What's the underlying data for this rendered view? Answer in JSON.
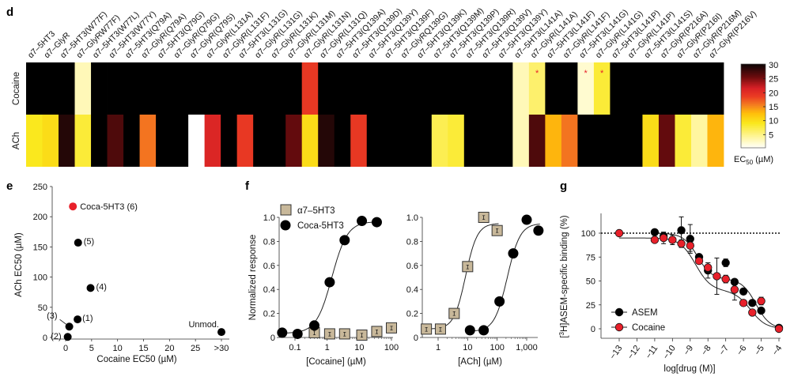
{
  "panels": {
    "d": "d",
    "e": "e",
    "f": "f",
    "g": "g"
  },
  "chart_data": [
    {
      "type": "heatmap",
      "panel": "d",
      "title": "",
      "rows": [
        "Cocaine",
        "ACh"
      ],
      "columns": [
        "α7–5HT3",
        "α7–GlyR",
        "α7–5HT3(W77F)",
        "α7–GlyRW77F)",
        "α7–5HT3(W77L)",
        "α7–5HT3(W77Y)",
        "α7–5HT3(Q79A)",
        "α7–GlyR(Q79A)",
        "α7–5HT3(Q79G)",
        "α7–GlyR(Q79G)",
        "α7–GlyR(Q79S)",
        "α7–GlyR(L131A)",
        "α7–GlyR(L131F)",
        "α7–5HT3(L131G)",
        "α7–GlyR(L131G)",
        "α7–GlyR(L131K)",
        "α7–GlyR(L131M)",
        "α7–GlyR(L131N)",
        "α7–GlyR(L131Q)",
        "α7–5HT3(Q139A)",
        "α7–5HT3(Q139D)",
        "α7–5HT3(Q139Y)",
        "α7–5HT3(Q139F)",
        "α7–GlyRQ139G)",
        "α7–5HT3(Q139K)",
        "α7–5HT3(Q139M)",
        "α7–5HT3(Q139P)",
        "α7–5HT3(Q139R)",
        "α7–5HT3(Q139V)",
        "α7–5HT3(Q139Y)",
        "α7–5HT3(L141A)",
        "α7–GlyR(L141A)",
        "α7–5HT3(L141F)",
        "α7–GlyR(L141F)",
        "α7–5HT3(L141G)",
        "α7–GlyR(L141G)",
        "α7–5HT3(L141P)",
        "α7–GlyR(L141P)",
        "α7–5HT3(L141S)",
        "α7–GlyR(P216A)",
        "α7–GlyR(P216I)",
        "α7–GlyR(P216M)",
        "α7–GlyR(P216V)"
      ],
      "values_note": "EC50 (µM); null = no response (black, >30)",
      "values": [
        [
          null,
          null,
          null,
          3,
          null,
          null,
          null,
          null,
          null,
          null,
          null,
          null,
          null,
          null,
          null,
          null,
          null,
          19,
          null,
          null,
          null,
          null,
          null,
          null,
          null,
          null,
          null,
          null,
          null,
          null,
          3,
          6,
          null,
          null,
          2,
          8,
          null,
          null,
          null,
          null,
          null,
          null,
          null
        ],
        [
          9,
          10,
          29,
          8,
          null,
          27,
          null,
          16,
          null,
          null,
          0,
          21,
          null,
          19,
          null,
          null,
          26,
          10,
          29,
          null,
          19,
          null,
          null,
          null,
          null,
          7,
          8,
          null,
          null,
          null,
          3,
          27,
          13,
          16,
          null,
          null,
          null,
          null,
          10,
          26,
          8,
          4,
          13
        ]
      ],
      "significance_marks": [
        {
          "row": "Cocaine",
          "column": 31,
          "mark": "*"
        },
        {
          "row": "Cocaine",
          "column": 34,
          "mark": "*"
        },
        {
          "row": "Cocaine",
          "column": 35,
          "mark": "*"
        }
      ],
      "colorbar": {
        "label": "EC50 (µM)",
        "ticks": [
          5,
          10,
          15,
          20,
          25,
          30
        ],
        "range": [
          0,
          30
        ],
        "colormap": "hot (white→yellow→red→black)"
      }
    },
    {
      "type": "scatter",
      "panel": "e",
      "xlabel": "Cocaine EC50 (µM)",
      "ylabel": "ACh EC50 (µM)",
      "xlim": [
        -3,
        31
      ],
      "ylim": [
        0,
        250
      ],
      "xticks": [
        "0",
        "5",
        "10",
        "15",
        "20",
        "25",
        ">30"
      ],
      "yticks": [
        "0",
        "50",
        "100",
        "150",
        "200",
        "250"
      ],
      "points": [
        {
          "label": "(1)",
          "x": 2.3,
          "y": 30,
          "color": "#000000"
        },
        {
          "label": "(2)",
          "x": 0.4,
          "y": 1,
          "color": "#000000"
        },
        {
          "label": "(3)",
          "x": 0.7,
          "y": 18,
          "color": "#000000"
        },
        {
          "label": "(4)",
          "x": 4.8,
          "y": 82,
          "color": "#000000"
        },
        {
          "label": "(5)",
          "x": 2.4,
          "y": 157,
          "color": "#000000"
        },
        {
          "label": "Coca-5HT3 (6)",
          "x": 1.4,
          "y": 217,
          "color": "#e8202a"
        },
        {
          "label": "Unmod.",
          "x": 30,
          "y": 9,
          "color": "#000000"
        }
      ]
    },
    {
      "type": "scatter",
      "panel": "f-left",
      "xlabel": "[Cocaine] (µM)",
      "ylabel": "Normalized response",
      "xscale": "log",
      "xlim": [
        0.03,
        150
      ],
      "ylim": [
        0,
        1.0
      ],
      "xticks": [
        "0.1",
        "1",
        "10",
        "100"
      ],
      "yticks": [
        "0",
        "0.2",
        "0.4",
        "0.6",
        "0.8",
        "1.0"
      ],
      "legend": [
        "α7–5HT3",
        "Coca-5HT3"
      ],
      "series": [
        {
          "name": "α7–5HT3",
          "marker": "square",
          "color": "#c8b89a",
          "x": [
            0.4,
            1.2,
            3.5,
            12,
            35,
            100
          ],
          "y": [
            0.04,
            0.03,
            0.03,
            0.02,
            0.05,
            0.08
          ]
        },
        {
          "name": "Coca-5HT3",
          "marker": "circle",
          "color": "#000000",
          "x": [
            0.04,
            0.12,
            0.4,
            1.2,
            3.5,
            12,
            35
          ],
          "y": [
            0.04,
            0.03,
            0.1,
            0.46,
            0.81,
            0.97,
            0.96
          ],
          "fit": {
            "ec50": 1.4,
            "hill": 1.8,
            "bottom": 0.035,
            "top": 0.965
          }
        }
      ]
    },
    {
      "type": "scatter",
      "panel": "f-right",
      "xlabel": "[ACh] (µM)",
      "ylabel": "",
      "xscale": "log",
      "xlim": [
        0.3,
        3500
      ],
      "ylim": [
        0,
        1.0
      ],
      "xticks": [
        "1",
        "10",
        "100",
        "1,000"
      ],
      "yticks": [
        "0",
        "0.2",
        "0.4",
        "0.6",
        "0.8",
        "1.0"
      ],
      "series": [
        {
          "name": "α7–5HT3",
          "marker": "square",
          "color": "#c8b89a",
          "x": [
            0.4,
            1.2,
            3.5,
            10,
            35,
            100
          ],
          "y": [
            0.07,
            0.07,
            0.2,
            0.59,
            1.0,
            0.89
          ],
          "fit": {
            "ec50": 8.5,
            "hill": 2.2,
            "bottom": 0.07,
            "top": 0.95
          }
        },
        {
          "name": "Coca-5HT3",
          "marker": "circle",
          "color": "#000000",
          "x": [
            12,
            35,
            120,
            350,
            1000,
            2500
          ],
          "y": [
            0.06,
            0.06,
            0.3,
            0.7,
            0.98,
            0.89
          ],
          "fit": {
            "ec50": 220,
            "hill": 2.0,
            "bottom": 0.05,
            "top": 0.95
          }
        }
      ]
    },
    {
      "type": "scatter",
      "panel": "g",
      "xlabel": "log[drug (M)]",
      "ylabel": "[3H]ASEM-specific binding (%)",
      "xlim": [
        -14,
        -4
      ],
      "ylim": [
        -8,
        122
      ],
      "xticks": [
        "−13",
        "−12",
        "−11",
        "−10",
        "−9",
        "−8",
        "−7",
        "−6",
        "−5",
        "−4"
      ],
      "yticks": [
        "0",
        "25",
        "50",
        "75",
        "100"
      ],
      "reference_line": 100,
      "legend": [
        "ASEM",
        "Cocaine"
      ],
      "series": [
        {
          "name": "ASEM",
          "color": "#000000",
          "x": [
            -11,
            -10.5,
            -9.5,
            -9,
            -8.5,
            -8,
            -7,
            -6.5,
            -6,
            -5.5,
            -5,
            -4
          ],
          "y": [
            101,
            97,
            103,
            94,
            75,
            61,
            69,
            49,
            39,
            27,
            19,
            1
          ],
          "err": [
            0,
            4,
            14,
            15,
            0,
            8,
            4,
            0,
            0,
            0,
            0,
            0
          ]
        },
        {
          "name": "Cocaine",
          "color": "#e8202a",
          "x": [
            -13,
            -11,
            -10.5,
            -10,
            -9.5,
            -9,
            -8.5,
            -8,
            -7.5,
            -7,
            -6.5,
            -6,
            -5.5,
            -5,
            -4
          ],
          "y": [
            100,
            93,
            95,
            93,
            89,
            87,
            71,
            64,
            55,
            52,
            41,
            27,
            17,
            29,
            0
          ],
          "err": [
            3,
            0,
            6,
            5,
            4,
            6,
            0,
            5,
            19,
            4,
            11,
            0,
            0,
            4,
            0
          ]
        }
      ]
    }
  ]
}
